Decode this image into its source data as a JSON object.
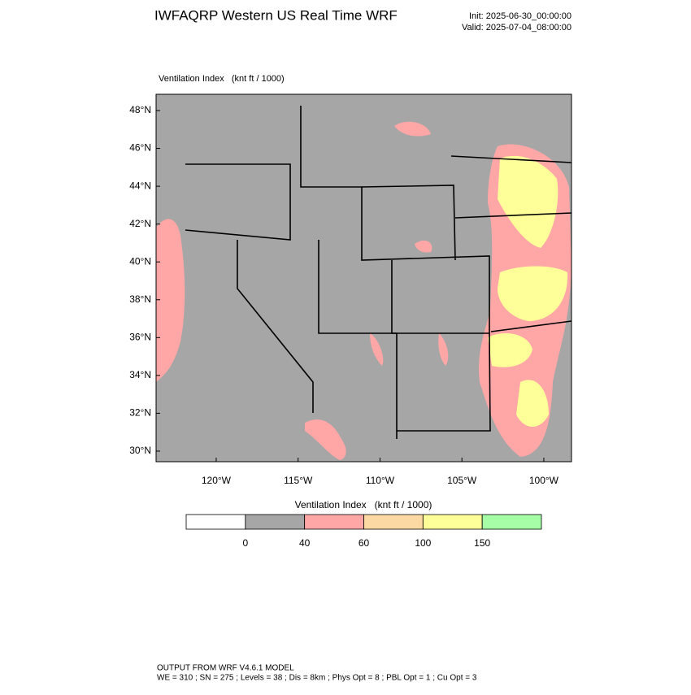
{
  "header": {
    "title": "IWFAQRP Western US Real Time WRF",
    "init": "Init: 2025-06-30_00:00:00",
    "valid": "Valid: 2025-07-04_08:00:00"
  },
  "map": {
    "label": "Ventilation Index   (knt ft / 1000)",
    "xlim": [
      -123.67,
      -98.31
    ],
    "ylim": [
      29.44,
      48.86
    ],
    "lat_ticks": [
      {
        "value": 48,
        "label": "48°N"
      },
      {
        "value": 46,
        "label": "46°N"
      },
      {
        "value": 44,
        "label": "44°N"
      },
      {
        "value": 42,
        "label": "42°N"
      },
      {
        "value": 40,
        "label": "40°N"
      },
      {
        "value": 38,
        "label": "38°N"
      },
      {
        "value": 36,
        "label": "36°N"
      },
      {
        "value": 34,
        "label": "34°N"
      },
      {
        "value": 32,
        "label": "32°N"
      },
      {
        "value": 30,
        "label": "30°N"
      }
    ],
    "lon_ticks": [
      {
        "value": -120,
        "label": "120°W"
      },
      {
        "value": -115,
        "label": "115°W"
      },
      {
        "value": -110,
        "label": "110°W"
      },
      {
        "value": -105,
        "label": "105°W"
      },
      {
        "value": -100,
        "label": "100°W"
      }
    ]
  },
  "colorbar": {
    "title": "Ventilation Index   (knt ft / 1000)",
    "levels": [
      0,
      40,
      60,
      100,
      150
    ],
    "colors": [
      "#ffffff",
      "#a6a6a6",
      "#ffa6a6",
      "#fcd9a2",
      "#ffff99",
      "#a6ffa6"
    ]
  },
  "footer": {
    "line1": "OUTPUT FROM WRF V4.6.1 MODEL",
    "line2": "WE = 310 ; SN = 275 ; Levels = 38 ; Dis = 8km ; Phys Opt = 8 ; PBL Opt = 1 ; Cu Opt = 3"
  }
}
